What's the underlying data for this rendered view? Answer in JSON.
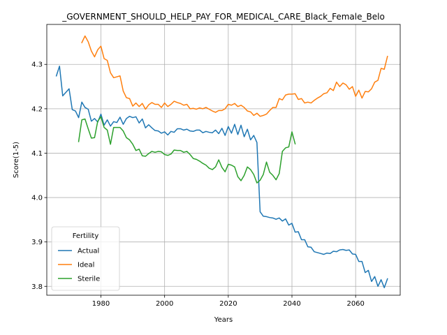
{
  "chart_data": {
    "type": "line",
    "title": "_GOVERNMENT_SHOULD_HELP_PAY_FOR_MEDICAL_CARE_Black_Female_Belo",
    "xlabel": "Years",
    "ylabel": "Score(1-5)",
    "xlim": [
      1963,
      2074
    ],
    "ylim": [
      3.78,
      4.39
    ],
    "xticks": [
      1980,
      2000,
      2020,
      2040,
      2060
    ],
    "yticks": [
      3.8,
      3.9,
      4.0,
      4.1,
      4.2,
      4.3
    ],
    "grid": true,
    "legend": {
      "title": "Fertility",
      "placement": "lower-left"
    },
    "series": [
      {
        "name": "Actual",
        "color": "#1f77b4",
        "x": [
          1966,
          1967,
          1968,
          1970,
          1971,
          1972,
          1973,
          1974,
          1975,
          1976,
          1977,
          1978,
          1979,
          1980,
          1981,
          1982,
          1983,
          1984,
          1985,
          1986,
          1987,
          1988,
          1989,
          1990,
          1991,
          1992,
          1993,
          1994,
          1995,
          1996,
          1997,
          1998,
          1999,
          2000,
          2001,
          2002,
          2003,
          2004,
          2005,
          2006,
          2007,
          2008,
          2009,
          2010,
          2011,
          2012,
          2013,
          2014,
          2015,
          2016,
          2017,
          2018,
          2019,
          2020,
          2021,
          2022,
          2023,
          2024,
          2025,
          2026,
          2027,
          2028,
          2029,
          2030,
          2031,
          2032,
          2033,
          2034,
          2035,
          2036,
          2037,
          2038,
          2039,
          2040,
          2041,
          2042,
          2043,
          2044,
          2045,
          2046,
          2047,
          2048,
          2049,
          2050,
          2051,
          2052,
          2053,
          2054,
          2055,
          2056,
          2057,
          2058,
          2059,
          2060,
          2061,
          2062,
          2063,
          2064,
          2065,
          2066,
          2067,
          2068,
          2069,
          2070
        ],
        "y": [
          4.274,
          4.296,
          4.229,
          4.245,
          4.198,
          4.195,
          4.18,
          4.215,
          4.203,
          4.199,
          4.172,
          4.178,
          4.17,
          4.188,
          4.163,
          4.175,
          4.161,
          4.171,
          4.169,
          4.181,
          4.165,
          4.178,
          4.183,
          4.18,
          4.182,
          4.168,
          4.177,
          4.157,
          4.164,
          4.157,
          4.151,
          4.15,
          4.145,
          4.148,
          4.141,
          4.149,
          4.147,
          4.155,
          4.155,
          4.152,
          4.154,
          4.15,
          4.149,
          4.152,
          4.152,
          4.146,
          4.149,
          4.147,
          4.146,
          4.152,
          4.144,
          4.156,
          4.14,
          4.16,
          4.145,
          4.165,
          4.142,
          4.163,
          4.137,
          4.154,
          4.13,
          4.14,
          4.124,
          3.968,
          3.958,
          3.957,
          3.955,
          3.954,
          3.951,
          3.954,
          3.947,
          3.952,
          3.938,
          3.942,
          3.922,
          3.923,
          3.905,
          3.905,
          3.889,
          3.888,
          3.878,
          3.876,
          3.874,
          3.872,
          3.875,
          3.874,
          3.879,
          3.878,
          3.882,
          3.883,
          3.881,
          3.882,
          3.873,
          3.872,
          3.856,
          3.856,
          3.831,
          3.836,
          3.811,
          3.822,
          3.8,
          3.815,
          3.797,
          3.817
        ]
      },
      {
        "name": "Ideal",
        "color": "#ff7f0e",
        "x": [
          1974,
          1975,
          1976,
          1977,
          1978,
          1979,
          1980,
          1981,
          1982,
          1983,
          1984,
          1985,
          1986,
          1987,
          1988,
          1989,
          1990,
          1991,
          1992,
          1993,
          1994,
          1995,
          1996,
          1997,
          1998,
          1999,
          2000,
          2001,
          2002,
          2003,
          2004,
          2005,
          2006,
          2007,
          2008,
          2009,
          2010,
          2011,
          2012,
          2013,
          2014,
          2015,
          2016,
          2017,
          2018,
          2019,
          2020,
          2021,
          2022,
          2023,
          2024,
          2025,
          2026,
          2027,
          2028,
          2029,
          2030,
          2031,
          2032,
          2033,
          2034,
          2035,
          2036,
          2037,
          2038,
          2039,
          2040,
          2041,
          2042,
          2043,
          2044,
          2045,
          2046,
          2047,
          2048,
          2049,
          2050,
          2051,
          2052,
          2053,
          2054,
          2055,
          2056,
          2057,
          2058,
          2059,
          2060,
          2061,
          2062,
          2063,
          2064,
          2065,
          2066,
          2067,
          2068,
          2069,
          2070
        ],
        "y": [
          4.349,
          4.364,
          4.351,
          4.33,
          4.317,
          4.333,
          4.341,
          4.313,
          4.309,
          4.281,
          4.27,
          4.272,
          4.274,
          4.24,
          4.225,
          4.223,
          4.206,
          4.213,
          4.205,
          4.212,
          4.199,
          4.209,
          4.214,
          4.21,
          4.21,
          4.203,
          4.213,
          4.205,
          4.21,
          4.217,
          4.214,
          4.212,
          4.208,
          4.21,
          4.2,
          4.201,
          4.199,
          4.202,
          4.2,
          4.203,
          4.199,
          4.195,
          4.192,
          4.196,
          4.196,
          4.2,
          4.21,
          4.208,
          4.212,
          4.205,
          4.208,
          4.203,
          4.195,
          4.193,
          4.185,
          4.19,
          4.183,
          4.185,
          4.188,
          4.196,
          4.203,
          4.203,
          4.223,
          4.22,
          4.231,
          4.233,
          4.233,
          4.234,
          4.221,
          4.223,
          4.213,
          4.215,
          4.213,
          4.219,
          4.224,
          4.228,
          4.234,
          4.236,
          4.246,
          4.241,
          4.26,
          4.25,
          4.258,
          4.254,
          4.244,
          4.25,
          4.228,
          4.242,
          4.224,
          4.239,
          4.238,
          4.245,
          4.26,
          4.264,
          4.291,
          4.289,
          4.318
        ]
      },
      {
        "name": "Sterile",
        "color": "#2ca02c",
        "x": [
          1973,
          1974,
          1975,
          1976,
          1977,
          1978,
          1979,
          1980,
          1981,
          1982,
          1983,
          1984,
          1985,
          1986,
          1987,
          1988,
          1989,
          1990,
          1991,
          1992,
          1993,
          1994,
          1995,
          1996,
          1997,
          1998,
          1999,
          2000,
          2001,
          2002,
          2003,
          2004,
          2005,
          2006,
          2007,
          2008,
          2009,
          2010,
          2011,
          2012,
          2013,
          2014,
          2015,
          2016,
          2017,
          2018,
          2019,
          2020,
          2021,
          2022,
          2023,
          2024,
          2025,
          2026,
          2027,
          2028,
          2029,
          2030,
          2031,
          2032,
          2033,
          2034,
          2035,
          2036,
          2037,
          2038,
          2039,
          2040,
          2041
        ],
        "y": [
          4.126,
          4.175,
          4.177,
          4.155,
          4.134,
          4.135,
          4.172,
          4.182,
          4.158,
          4.152,
          4.12,
          4.158,
          4.158,
          4.158,
          4.15,
          4.135,
          4.13,
          4.12,
          4.106,
          4.109,
          4.094,
          4.093,
          4.099,
          4.104,
          4.102,
          4.104,
          4.103,
          4.097,
          4.095,
          4.098,
          4.107,
          4.106,
          4.106,
          4.102,
          4.104,
          4.097,
          4.088,
          4.086,
          4.082,
          4.077,
          4.073,
          4.066,
          4.063,
          4.069,
          4.085,
          4.068,
          4.058,
          4.075,
          4.073,
          4.069,
          4.047,
          4.038,
          4.05,
          4.069,
          4.063,
          4.052,
          4.033,
          4.039,
          4.052,
          4.08,
          4.057,
          4.05,
          4.04,
          4.054,
          4.104,
          4.112,
          4.114,
          4.148,
          4.121
        ]
      }
    ]
  }
}
